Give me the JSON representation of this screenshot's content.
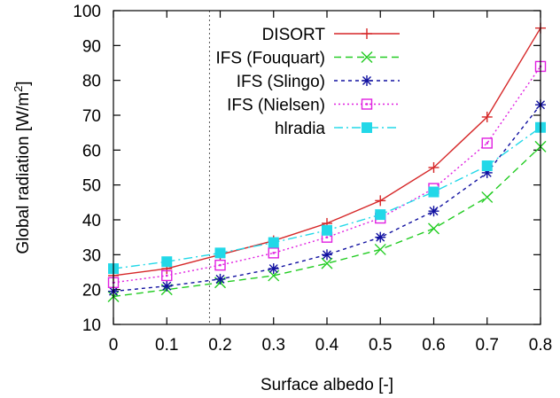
{
  "chart_data": {
    "type": "line",
    "xlabel": "Surface albedo [-]",
    "ylabel": "Global radiation [W/m",
    "ylabel_sup": "2",
    "ylabel_end": "]",
    "xlim": [
      0,
      0.8
    ],
    "ylim": [
      10,
      100
    ],
    "x_ticks": [
      "0",
      "0.1",
      "0.2",
      "0.3",
      "0.4",
      "0.5",
      "0.6",
      "0.7",
      "0.8"
    ],
    "y_ticks": [
      "10",
      "20",
      "30",
      "40",
      "50",
      "60",
      "70",
      "80",
      "90",
      "100"
    ],
    "grid": false,
    "legend_position": "top-right",
    "reference_line": {
      "x": 0.18,
      "style": "dotted",
      "color": "#555555"
    },
    "x": [
      0,
      0.1,
      0.2,
      0.3,
      0.4,
      0.5,
      0.6,
      0.7,
      0.8
    ],
    "series": [
      {
        "name": "DISORT",
        "color": "#d62728",
        "dash": "solid",
        "marker": "plus",
        "values": [
          24,
          26,
          30,
          34,
          39,
          45.5,
          55,
          69.5,
          95
        ]
      },
      {
        "name": "IFS (Fouquart)",
        "color": "#22cc22",
        "dash": "8,5",
        "marker": "x",
        "values": [
          18,
          20,
          22,
          24,
          27.5,
          31.5,
          37.5,
          46.5,
          61
        ]
      },
      {
        "name": "IFS (Slingo)",
        "color": "#1010a0",
        "dash": "4,4",
        "marker": "asterisk",
        "values": [
          19.5,
          21,
          23,
          26,
          30,
          35,
          42.5,
          53.5,
          73
        ]
      },
      {
        "name": "IFS (Nielsen)",
        "color": "#e020e0",
        "dash": "2,3",
        "marker": "open-square",
        "values": [
          22,
          24,
          27,
          30.5,
          35,
          40.5,
          49,
          62,
          84
        ]
      },
      {
        "name": "hlradia",
        "color": "#22d8e8",
        "dash": "10,4,2,4",
        "marker": "filled-square",
        "values": [
          26,
          28,
          30.5,
          33.5,
          37,
          41.5,
          48,
          55.5,
          66.5
        ]
      }
    ]
  }
}
